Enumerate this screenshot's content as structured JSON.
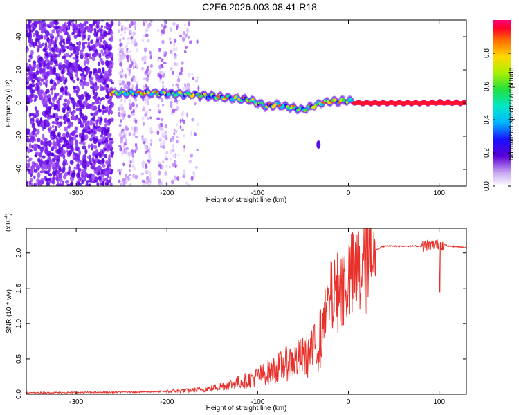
{
  "title": "C2E6.2026.003.08.41.R18",
  "chart_data": [
    {
      "type": "heatmap",
      "panel": "top",
      "xlabel": "Height of straight line (km)",
      "ylabel": "Frequency (Hz)",
      "xlim": [
        -355,
        130
      ],
      "ylim": [
        -50,
        50
      ],
      "xticks": [
        -300,
        -200,
        -100,
        0,
        100
      ],
      "yticks": [
        -40,
        -20,
        0,
        20,
        40
      ],
      "ridge": {
        "x": [
          -262,
          -250,
          -230,
          -210,
          -190,
          -170,
          -150,
          -130,
          -110,
          -100,
          -90,
          -80,
          -70,
          -60,
          -50,
          -40,
          -30,
          -20,
          -10,
          0,
          10,
          30,
          60,
          90,
          100,
          130
        ],
        "y": [
          6,
          6,
          6,
          6,
          5.5,
          5,
          4,
          3,
          2,
          0,
          -2,
          -1,
          -2,
          -3,
          -4,
          -2,
          0,
          1,
          1,
          1.5,
          0,
          0,
          0,
          0,
          0.5,
          0
        ]
      },
      "outlier": {
        "x": -33,
        "y": -25
      },
      "colorbar": {
        "label": "Normalized spectral amplitude",
        "ticks": [
          "0.0",
          "0.2",
          "0.4",
          "0.6",
          "0.8"
        ],
        "range": [
          0,
          1
        ]
      }
    },
    {
      "type": "line",
      "panel": "bottom",
      "xlabel": "Height of straight line (km)",
      "ylabel": "SNR (10 * v/v)",
      "scale_label": "(x10",
      "scale_exp": "4",
      "scale_close": ")",
      "xlim": [
        -355,
        130
      ],
      "ylim": [
        0,
        2.35
      ],
      "xticks": [
        -300,
        -200,
        -100,
        0,
        100
      ],
      "yticks": [
        "0.0",
        "0.5",
        "1.0",
        "1.5",
        "2.0"
      ],
      "color": "#e8312b",
      "envelope": {
        "x": [
          -355,
          -250,
          -200,
          -170,
          -150,
          -130,
          -110,
          -90,
          -70,
          -50,
          -40,
          -30,
          -25,
          -20,
          -10,
          0,
          10,
          20,
          30,
          40,
          60,
          80,
          90,
          100,
          110,
          130
        ],
        "y": [
          0.02,
          0.03,
          0.04,
          0.06,
          0.09,
          0.15,
          0.22,
          0.32,
          0.45,
          0.55,
          0.62,
          0.85,
          1.2,
          1.45,
          1.6,
          1.75,
          1.85,
          1.95,
          2.05,
          2.1,
          2.1,
          2.1,
          2.12,
          2.14,
          2.1,
          2.08
        ]
      }
    }
  ]
}
